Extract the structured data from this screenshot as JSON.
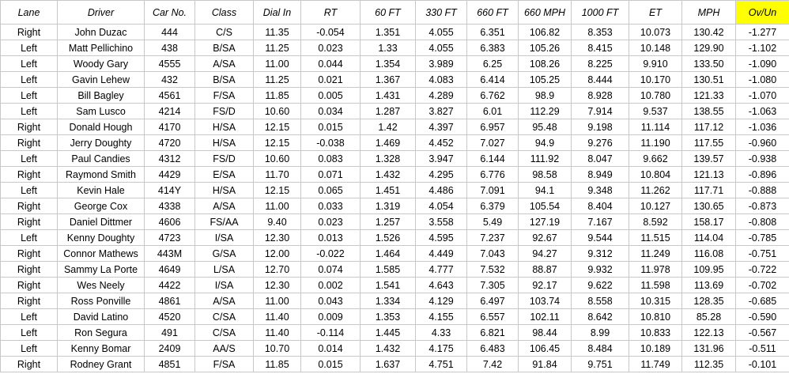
{
  "table": {
    "header": [
      "Lane",
      "Driver",
      "Car No.",
      "Class",
      "Dial In",
      "RT",
      "60 FT",
      "330 FT",
      "660 FT",
      "660 MPH",
      "1000 FT",
      "ET",
      "MPH",
      "Ov/Un"
    ],
    "rows": [
      [
        "Right",
        "John Duzac",
        "444",
        "C/S",
        "11.35",
        "-0.054",
        "1.351",
        "4.055",
        "6.351",
        "106.82",
        "8.353",
        "10.073",
        "130.42",
        "-1.277"
      ],
      [
        "Left",
        "Matt Pellichino",
        "438",
        "B/SA",
        "11.25",
        "0.023",
        "1.33",
        "4.055",
        "6.383",
        "105.26",
        "8.415",
        "10.148",
        "129.90",
        "-1.102"
      ],
      [
        "Left",
        "Woody Gary",
        "4555",
        "A/SA",
        "11.00",
        "0.044",
        "1.354",
        "3.989",
        "6.25",
        "108.26",
        "8.225",
        "9.910",
        "133.50",
        "-1.090"
      ],
      [
        "Left",
        "Gavin Lehew",
        "432",
        "B/SA",
        "11.25",
        "0.021",
        "1.367",
        "4.083",
        "6.414",
        "105.25",
        "8.444",
        "10.170",
        "130.51",
        "-1.080"
      ],
      [
        "Left",
        "Bill Bagley",
        "4561",
        "F/SA",
        "11.85",
        "0.005",
        "1.431",
        "4.289",
        "6.762",
        "98.9",
        "8.928",
        "10.780",
        "121.33",
        "-1.070"
      ],
      [
        "Left",
        "Sam Lusco",
        "4214",
        "FS/D",
        "10.60",
        "0.034",
        "1.287",
        "3.827",
        "6.01",
        "112.29",
        "7.914",
        "9.537",
        "138.55",
        "-1.063"
      ],
      [
        "Right",
        "Donald Hough",
        "4170",
        "H/SA",
        "12.15",
        "0.015",
        "1.42",
        "4.397",
        "6.957",
        "95.48",
        "9.198",
        "11.114",
        "117.12",
        "-1.036"
      ],
      [
        "Right",
        "Jerry Doughty",
        "4720",
        "H/SA",
        "12.15",
        "-0.038",
        "1.469",
        "4.452",
        "7.027",
        "94.9",
        "9.276",
        "11.190",
        "117.55",
        "-0.960"
      ],
      [
        "Left",
        "Paul Candies",
        "4312",
        "FS/D",
        "10.60",
        "0.083",
        "1.328",
        "3.947",
        "6.144",
        "111.92",
        "8.047",
        "9.662",
        "139.57",
        "-0.938"
      ],
      [
        "Right",
        "Raymond Smith",
        "4429",
        "E/SA",
        "11.70",
        "0.071",
        "1.432",
        "4.295",
        "6.776",
        "98.58",
        "8.949",
        "10.804",
        "121.13",
        "-0.896"
      ],
      [
        "Left",
        "Kevin Hale",
        "414Y",
        "H/SA",
        "12.15",
        "0.065",
        "1.451",
        "4.486",
        "7.091",
        "94.1",
        "9.348",
        "11.262",
        "117.71",
        "-0.888"
      ],
      [
        "Right",
        "George Cox",
        "4338",
        "A/SA",
        "11.00",
        "0.033",
        "1.319",
        "4.054",
        "6.379",
        "105.54",
        "8.404",
        "10.127",
        "130.65",
        "-0.873"
      ],
      [
        "Right",
        "Daniel Dittmer",
        "4606",
        "FS/AA",
        "9.40",
        "0.023",
        "1.257",
        "3.558",
        "5.49",
        "127.19",
        "7.167",
        "8.592",
        "158.17",
        "-0.808"
      ],
      [
        "Left",
        "Kenny Doughty",
        "4723",
        "I/SA",
        "12.30",
        "0.013",
        "1.526",
        "4.595",
        "7.237",
        "92.67",
        "9.544",
        "11.515",
        "114.04",
        "-0.785"
      ],
      [
        "Right",
        "Connor Mathews",
        "443M",
        "G/SA",
        "12.00",
        "-0.022",
        "1.464",
        "4.449",
        "7.043",
        "94.27",
        "9.312",
        "11.249",
        "116.08",
        "-0.751"
      ],
      [
        "Right",
        "Sammy La Porte",
        "4649",
        "L/SA",
        "12.70",
        "0.074",
        "1.585",
        "4.777",
        "7.532",
        "88.87",
        "9.932",
        "11.978",
        "109.95",
        "-0.722"
      ],
      [
        "Right",
        "Wes Neely",
        "4422",
        "I/SA",
        "12.30",
        "0.002",
        "1.541",
        "4.643",
        "7.305",
        "92.17",
        "9.622",
        "11.598",
        "113.69",
        "-0.702"
      ],
      [
        "Right",
        "Ross Ponville",
        "4861",
        "A/SA",
        "11.00",
        "0.043",
        "1.334",
        "4.129",
        "6.497",
        "103.74",
        "8.558",
        "10.315",
        "128.35",
        "-0.685"
      ],
      [
        "Left",
        "David Latino",
        "4520",
        "C/SA",
        "11.40",
        "0.009",
        "1.353",
        "4.155",
        "6.557",
        "102.11",
        "8.642",
        "10.810",
        "85.28",
        "-0.590"
      ],
      [
        "Left",
        "Ron Segura",
        "491",
        "C/SA",
        "11.40",
        "-0.114",
        "1.445",
        "4.33",
        "6.821",
        "98.44",
        "8.99",
        "10.833",
        "122.13",
        "-0.567"
      ],
      [
        "Left",
        "Kenny Bomar",
        "2409",
        "AA/S",
        "10.70",
        "0.014",
        "1.432",
        "4.175",
        "6.483",
        "106.45",
        "8.484",
        "10.189",
        "131.96",
        "-0.511"
      ],
      [
        "Right",
        "Rodney Grant",
        "4851",
        "F/SA",
        "11.85",
        "0.015",
        "1.637",
        "4.751",
        "7.42",
        "91.84",
        "9.751",
        "11.749",
        "112.35",
        "-0.101"
      ]
    ]
  }
}
